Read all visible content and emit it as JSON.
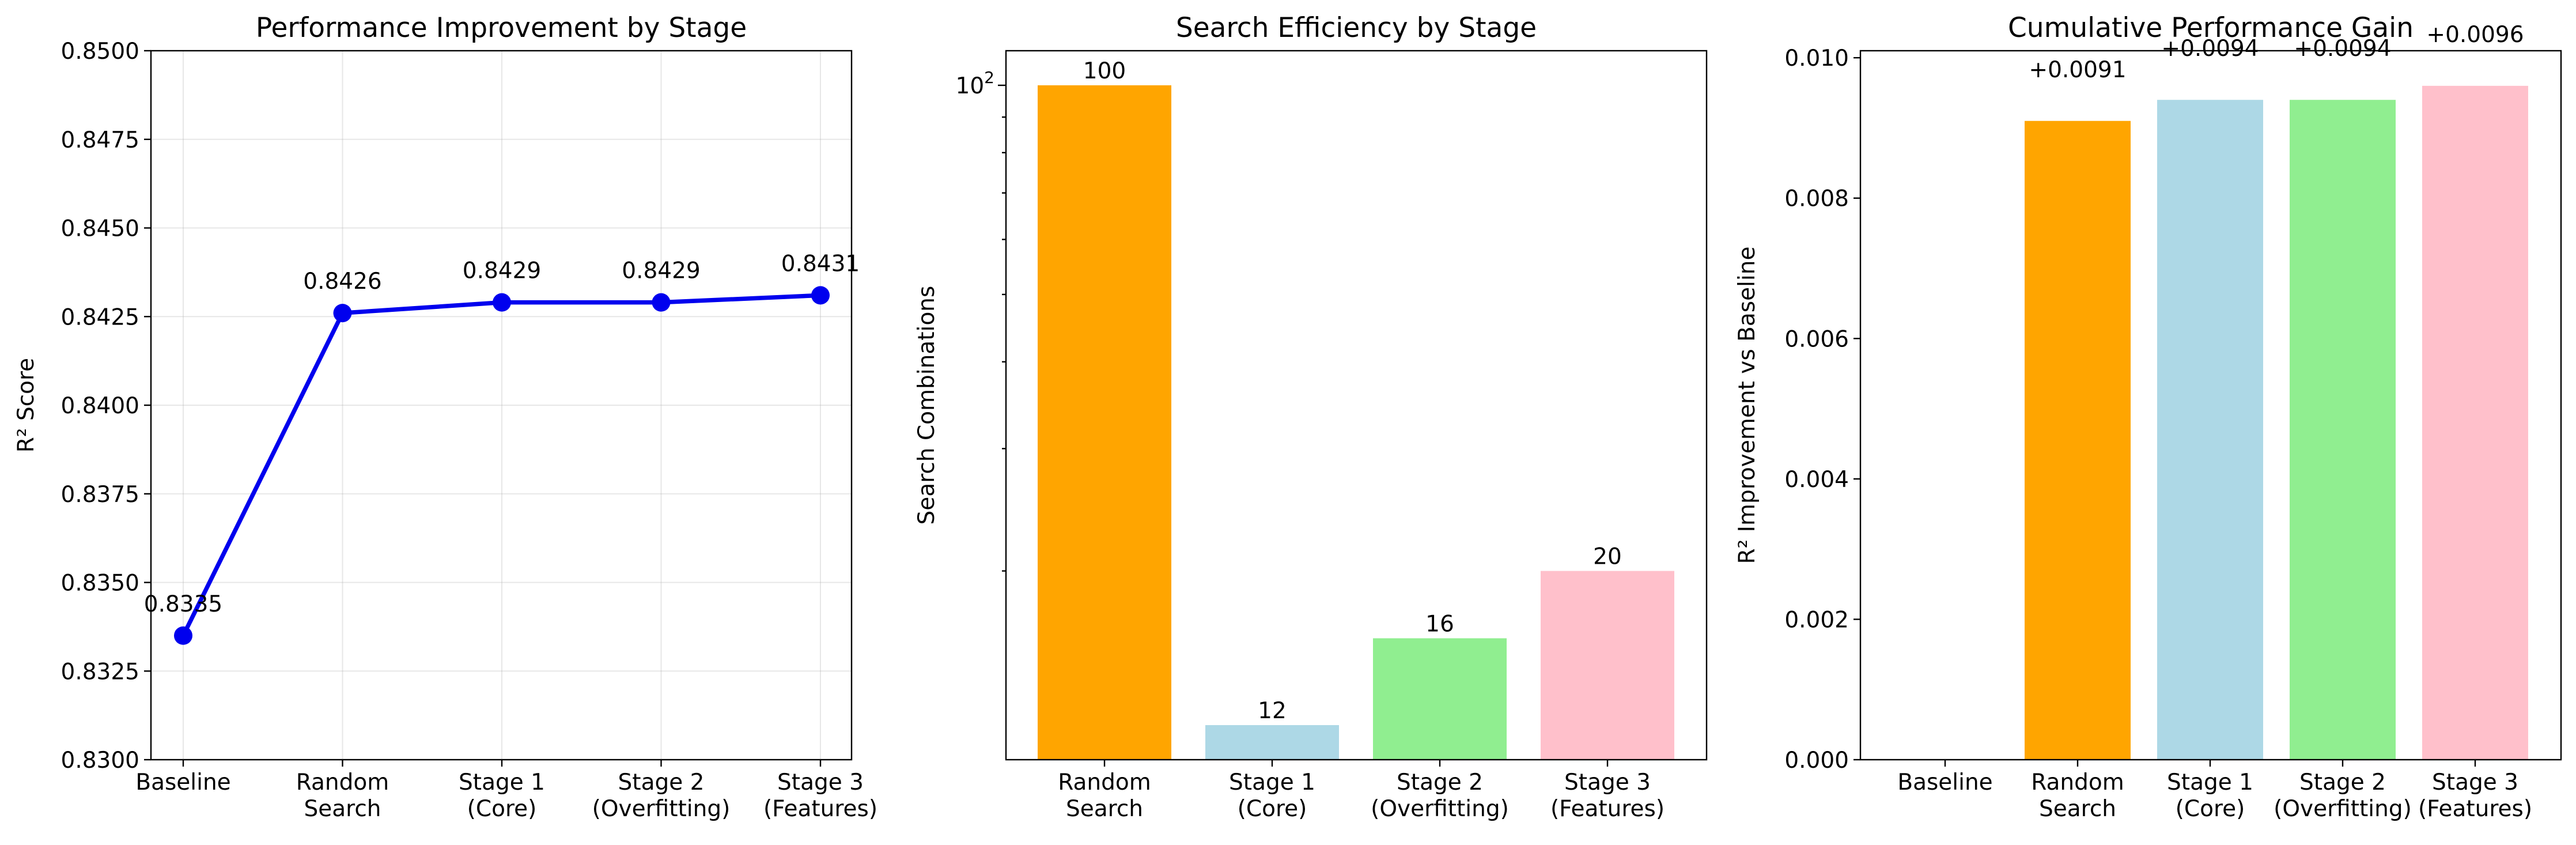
{
  "chart_data": [
    {
      "type": "line",
      "title": "Performance Improvement by Stage",
      "xlabel": "",
      "ylabel": "R² Score",
      "categories": [
        "Baseline",
        "Random\nSearch",
        "Stage 1\n(Core)",
        "Stage 2\n(Overfitting)",
        "Stage 3\n(Features)"
      ],
      "values": [
        0.8335,
        0.8426,
        0.8429,
        0.8429,
        0.8431
      ],
      "data_labels": [
        "0.8335",
        "0.8426",
        "0.8429",
        "0.8429",
        "0.8431"
      ],
      "ylim": [
        0.83,
        0.85
      ],
      "yticks": [
        0.83,
        0.8325,
        0.835,
        0.8375,
        0.84,
        0.8425,
        0.845,
        0.8475,
        0.85
      ],
      "ytick_labels": [
        "0.8300",
        "0.8325",
        "0.8350",
        "0.8375",
        "0.8400",
        "0.8425",
        "0.8450",
        "0.8475",
        "0.8500"
      ],
      "grid": true,
      "color": "#0000ee"
    },
    {
      "type": "bar",
      "title": "Search Efficiency by Stage",
      "xlabel": "",
      "ylabel": "Search Combinations",
      "scale": "log",
      "categories": [
        "Random\nSearch",
        "Stage 1\n(Core)",
        "Stage 2\n(Overfitting)",
        "Stage 3\n(Features)"
      ],
      "values": [
        100,
        12,
        16,
        20
      ],
      "data_labels": [
        "100",
        "12",
        "16",
        "20"
      ],
      "ylim": [
        10.7,
        100
      ],
      "ytick_label_base": "10",
      "ytick_label_exp": "2",
      "grid": false,
      "colors": [
        "#ffa500",
        "#add8e6",
        "#90ee90",
        "#ffc0cb"
      ]
    },
    {
      "type": "bar",
      "title": "Cumulative Performance Gain",
      "xlabel": "",
      "ylabel": "R² Improvement vs Baseline",
      "categories": [
        "Baseline",
        "Random\nSearch",
        "Stage 1\n(Core)",
        "Stage 2\n(Overfitting)",
        "Stage 3\n(Features)"
      ],
      "values": [
        0.0,
        0.0091,
        0.0094,
        0.0094,
        0.0096
      ],
      "data_labels": [
        "",
        "+0.0091",
        "+0.0094",
        "+0.0094",
        "+0.0096"
      ],
      "ylim": [
        0,
        0.0101
      ],
      "yticks": [
        0,
        0.002,
        0.004,
        0.006,
        0.008,
        0.01
      ],
      "ytick_labels": [
        "0.000",
        "0.002",
        "0.004",
        "0.006",
        "0.008",
        "0.010"
      ],
      "grid": false,
      "colors": [
        "#808080",
        "#ffa500",
        "#add8e6",
        "#90ee90",
        "#ffc0cb"
      ]
    }
  ]
}
